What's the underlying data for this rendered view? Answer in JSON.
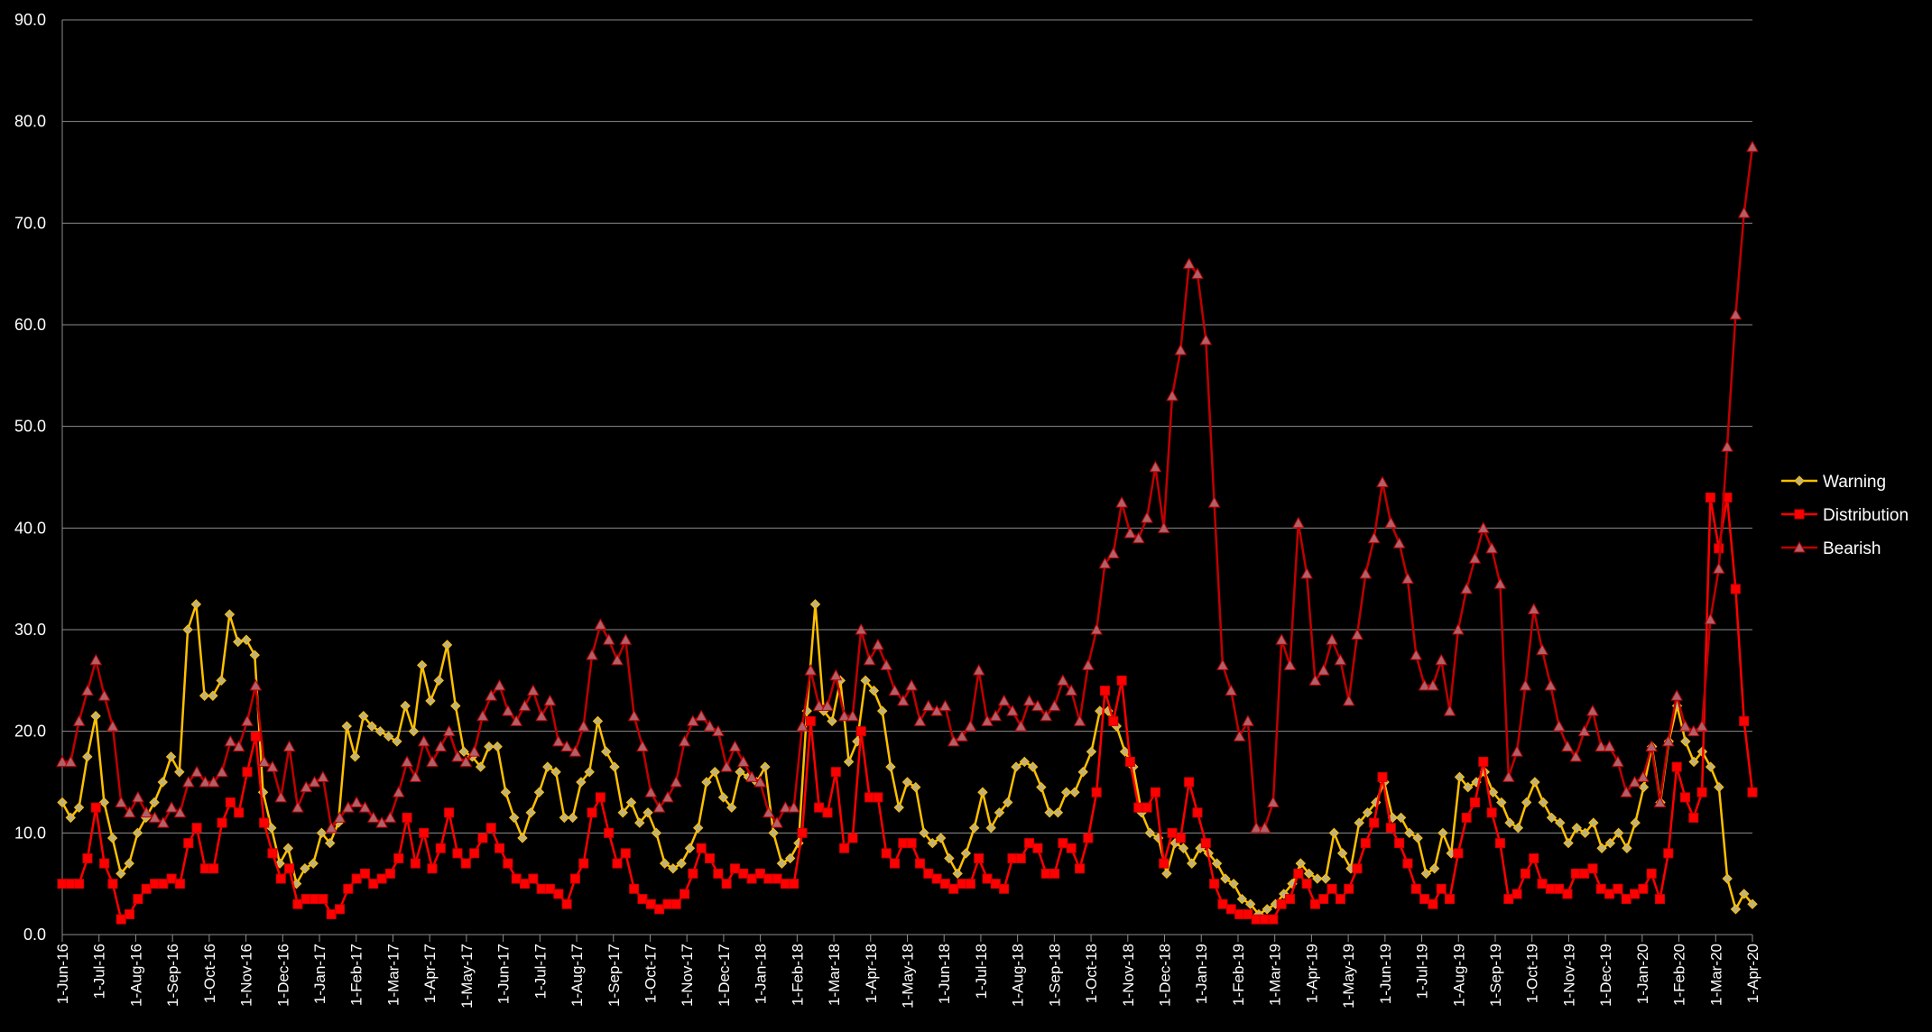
{
  "chart_data": {
    "type": "line",
    "title": "",
    "xlabel": "",
    "ylabel": "",
    "ylim": [
      0,
      90
    ],
    "yticks": [
      "0.0",
      "10.0",
      "20.0",
      "30.0",
      "40.0",
      "50.0",
      "60.0",
      "70.0",
      "80.0",
      "90.0"
    ],
    "xticks": [
      "1-Jun-16",
      "1-Jul-16",
      "1-Aug-16",
      "1-Sep-16",
      "1-Oct-16",
      "1-Nov-16",
      "1-Dec-16",
      "1-Jan-17",
      "1-Feb-17",
      "1-Mar-17",
      "1-Apr-17",
      "1-May-17",
      "1-Jun-17",
      "1-Jul-17",
      "1-Aug-17",
      "1-Sep-17",
      "1-Oct-17",
      "1-Nov-17",
      "1-Dec-17",
      "1-Jan-18",
      "1-Feb-18",
      "1-Mar-18",
      "1-Apr-18",
      "1-May-18",
      "1-Jun-18",
      "1-Jul-18",
      "1-Aug-18",
      "1-Sep-18",
      "1-Oct-18",
      "1-Nov-18",
      "1-Dec-18",
      "1-Jan-19",
      "1-Feb-19",
      "1-Mar-19",
      "1-Apr-19",
      "1-May-19",
      "1-Jun-19",
      "1-Jul-19",
      "1-Aug-19",
      "1-Sep-19",
      "1-Oct-19",
      "1-Nov-19",
      "1-Dec-19",
      "1-Jan-20",
      "1-Feb-20",
      "1-Mar-20",
      "1-Apr-20"
    ],
    "x_start": "2016-06-01",
    "x_end": "2020-04-01",
    "grid": true,
    "legend_position": "right",
    "series": [
      {
        "name": "Warning",
        "color": "#FFC000",
        "marker": "diamond",
        "values": [
          13,
          11.5,
          12.5,
          17.5,
          21.5,
          13,
          9.5,
          6,
          7,
          10,
          11.5,
          13,
          15,
          17.5,
          16,
          30,
          32.5,
          23.5,
          23.5,
          25,
          31.5,
          28.8,
          29,
          27.5,
          14,
          10.5,
          7,
          8.5,
          5,
          6.5,
          7,
          10,
          9,
          11,
          20.5,
          17.5,
          21.5,
          20.5,
          20,
          19.5,
          19,
          22.5,
          20,
          26.5,
          23,
          25,
          28.5,
          22.5,
          18,
          17.5,
          16.5,
          18.5,
          18.5,
          14,
          11.5,
          9.5,
          12,
          14,
          16.5,
          16,
          11.5,
          11.5,
          15,
          16,
          21,
          18,
          16.5,
          12,
          13,
          11,
          12,
          10,
          7,
          6.5,
          7,
          8.5,
          10.5,
          15,
          16,
          13.5,
          12.5,
          16,
          15.5,
          15,
          16.5,
          10,
          7,
          7.5,
          9,
          22,
          32.5,
          22,
          21,
          25,
          17,
          19,
          25,
          24,
          22,
          16.5,
          12.5,
          15,
          14.5,
          10,
          9,
          9.5,
          7.5,
          6,
          8,
          10.5,
          14,
          10.5,
          12,
          13,
          16.5,
          17,
          16.5,
          14.5,
          12,
          12,
          14,
          14,
          16,
          18,
          22,
          22,
          20.5,
          18,
          16.5,
          12,
          10,
          9.5,
          6,
          9,
          8.5,
          7,
          8.5,
          8,
          7,
          5.5,
          5,
          3.5,
          3,
          2,
          2.5,
          3,
          4,
          5,
          7,
          6,
          5.5,
          5.5,
          10,
          8,
          6.5,
          11,
          12,
          13,
          15,
          11.5,
          11.5,
          10,
          9.5,
          6,
          6.5,
          10,
          8,
          15.5,
          14.5,
          15,
          16,
          14,
          13,
          11,
          10.5,
          13,
          15,
          13,
          11.5,
          11,
          9,
          10.5,
          10,
          11,
          8.5,
          9,
          10,
          8.5,
          11,
          14.5,
          18.5,
          13,
          19,
          22.5,
          19,
          17,
          18,
          16.5,
          14.5,
          5.5,
          2.5,
          4,
          3
        ]
      },
      {
        "name": "Distribution",
        "color": "#FF0000",
        "marker": "square",
        "values": [
          5,
          5,
          5,
          7.5,
          12.5,
          7,
          5,
          1.5,
          2,
          3.5,
          4.5,
          5,
          5,
          5.5,
          5,
          9,
          10.5,
          6.5,
          6.5,
          11,
          13,
          12,
          16,
          19.5,
          11,
          8,
          5.5,
          6.5,
          3,
          3.5,
          3.5,
          3.5,
          2,
          2.5,
          4.5,
          5.5,
          6,
          5,
          5.5,
          6,
          7.5,
          11.5,
          7,
          10,
          6.5,
          8.5,
          12,
          8,
          7,
          8,
          9.5,
          10.5,
          8.5,
          7,
          5.5,
          5,
          5.5,
          4.5,
          4.5,
          4,
          3,
          5.5,
          7,
          12,
          13.5,
          10,
          7,
          8,
          4.5,
          3.5,
          3,
          2.5,
          3,
          3,
          4,
          6,
          8.5,
          7.5,
          6,
          5,
          6.5,
          6,
          5.5,
          6,
          5.5,
          5.5,
          5,
          5,
          10,
          21,
          12.5,
          12,
          16,
          8.5,
          9.5,
          20,
          13.5,
          13.5,
          8,
          7,
          9,
          9,
          7,
          6,
          5.5,
          5,
          4.5,
          5,
          5,
          7.5,
          5.5,
          5,
          4.5,
          7.5,
          7.5,
          9,
          8.5,
          6,
          6,
          9,
          8.5,
          6.5,
          9.5,
          14,
          24,
          21,
          25,
          17,
          12.5,
          12.5,
          14,
          7,
          10,
          9.5,
          15,
          12,
          9,
          5,
          3,
          2.5,
          2,
          2,
          1.5,
          1.5,
          1.5,
          3,
          3.5,
          6,
          5,
          3,
          3.5,
          4.5,
          3.5,
          4.5,
          6.5,
          9,
          11,
          15.5,
          10.5,
          9,
          7,
          4.5,
          3.5,
          3,
          4.5,
          3.5,
          8,
          11.5,
          13,
          17,
          12,
          9,
          3.5,
          4,
          6,
          7.5,
          5,
          4.5,
          4.5,
          4,
          6,
          6,
          6.5,
          4.5,
          4,
          4.5,
          3.5,
          4,
          4.5,
          6,
          3.5,
          8,
          16.5,
          13.5,
          11.5,
          14,
          43,
          38,
          43,
          34,
          21,
          14
        ]
      },
      {
        "name": "Bearish",
        "color": "#C00000",
        "marker": "triangle",
        "values": [
          17,
          17,
          21,
          24,
          27,
          23.5,
          20.5,
          13,
          12,
          13.5,
          12,
          11.5,
          11,
          12.5,
          12,
          15,
          16,
          15,
          15,
          16,
          19,
          18.5,
          21,
          24.5,
          17,
          16.5,
          13.5,
          18.5,
          12.5,
          14.5,
          15,
          15.5,
          10.5,
          11.5,
          12.5,
          13,
          12.5,
          11.5,
          11,
          11.5,
          14,
          17,
          15.5,
          19,
          17,
          18.5,
          20,
          17.5,
          17,
          18,
          21.5,
          23.5,
          24.5,
          22,
          21,
          22.5,
          24,
          21.5,
          23,
          19,
          18.5,
          18,
          20.5,
          27.5,
          30.5,
          29,
          27,
          29,
          21.5,
          18.5,
          14,
          12.5,
          13.5,
          15,
          19,
          21,
          21.5,
          20.5,
          20,
          16.5,
          18.5,
          17,
          15.5,
          15,
          12,
          11,
          12.5,
          12.5,
          20.5,
          26,
          22.5,
          22.5,
          25.5,
          21.5,
          21.5,
          30,
          27,
          28.5,
          26.5,
          24,
          23,
          24.5,
          21,
          22.5,
          22,
          22.5,
          19,
          19.5,
          20.5,
          26,
          21,
          21.5,
          23,
          22,
          20.5,
          23,
          22.5,
          21.5,
          22.5,
          25,
          24,
          21,
          26.5,
          30,
          36.5,
          37.5,
          42.5,
          39.5,
          39,
          41,
          46,
          40,
          53,
          57.5,
          66,
          65,
          58.5,
          42.5,
          26.5,
          24,
          19.5,
          21,
          10.5,
          10.5,
          13,
          29,
          26.5,
          40.5,
          35.5,
          25,
          26,
          29,
          27,
          23,
          29.5,
          35.5,
          39,
          44.5,
          40.5,
          38.5,
          35,
          27.5,
          24.5,
          24.5,
          27,
          22,
          30,
          34,
          37,
          40,
          38,
          34.5,
          15.5,
          18,
          24.5,
          32,
          28,
          24.5,
          20.5,
          18.5,
          17.5,
          20,
          22,
          18.5,
          18.5,
          17,
          14,
          15,
          15.5,
          18.5,
          13,
          19,
          23.5,
          20.5,
          20,
          20.5,
          31,
          36,
          48,
          61,
          71,
          77.5
        ]
      }
    ]
  }
}
